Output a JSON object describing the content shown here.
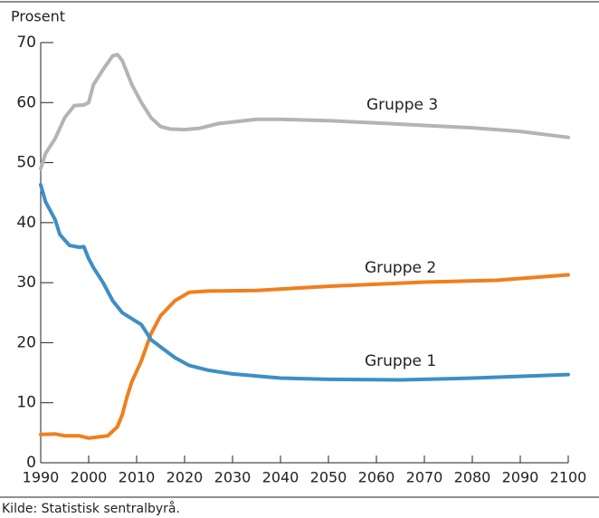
{
  "chart_data": {
    "type": "line",
    "y_label": "Prosent",
    "source": "Kilde: Statistisk sentralbyrå.",
    "xlim": [
      1990,
      2100
    ],
    "xticks": [
      1990,
      2000,
      2010,
      2020,
      2030,
      2040,
      2050,
      2060,
      2070,
      2080,
      2090,
      2100
    ],
    "ylim": [
      0,
      70
    ],
    "yticks": [
      0,
      10,
      20,
      30,
      40,
      50,
      60,
      70
    ],
    "grid": false,
    "series": [
      {
        "name": "Gruppe 3",
        "color": "#b4b4b4",
        "x": [
          1990,
          1991,
          1993,
          1995,
          1997,
          1999,
          2000,
          2001,
          2003,
          2005,
          2006,
          2007,
          2009,
          2011,
          2013,
          2015,
          2017,
          2020,
          2023,
          2027,
          2035,
          2040,
          2050,
          2060,
          2070,
          2080,
          2090,
          2100
        ],
        "values": [
          49,
          51.5,
          54,
          57.5,
          59.5,
          59.6,
          60,
          63,
          65.5,
          67.8,
          68,
          67,
          63,
          60,
          57.5,
          56,
          55.6,
          55.5,
          55.7,
          56.5,
          57.2,
          57.2,
          57,
          56.6,
          56.2,
          55.8,
          55.2,
          54.2
        ]
      },
      {
        "name": "Gruppe 2",
        "color": "#f07f1e",
        "x": [
          1990,
          1993,
          1995,
          1998,
          2000,
          2002,
          2004,
          2006,
          2007,
          2008,
          2009,
          2011,
          2013,
          2015,
          2018,
          2021,
          2025,
          2035,
          2050,
          2070,
          2085,
          2100
        ],
        "values": [
          4.7,
          4.8,
          4.5,
          4.5,
          4.1,
          4.3,
          4.5,
          6,
          8,
          11,
          13.5,
          17,
          21.5,
          24.5,
          27,
          28.4,
          28.6,
          28.7,
          29.4,
          30.1,
          30.4,
          31.3
        ]
      },
      {
        "name": "Gruppe 1",
        "color": "#3d8fc6",
        "x": [
          1990,
          1991,
          1993,
          1994,
          1996,
          1998,
          1999,
          2000,
          2001,
          2003,
          2005,
          2007,
          2009,
          2011,
          2013,
          2015,
          2018,
          2021,
          2025,
          2030,
          2040,
          2050,
          2065,
          2080,
          2100
        ],
        "values": [
          46.3,
          43.5,
          40.5,
          38,
          36.2,
          35.9,
          36,
          34,
          32.5,
          30,
          27,
          25,
          24,
          23,
          20.5,
          19.3,
          17.5,
          16.2,
          15.4,
          14.8,
          14.1,
          13.9,
          13.8,
          14.1,
          14.7
        ]
      }
    ]
  }
}
